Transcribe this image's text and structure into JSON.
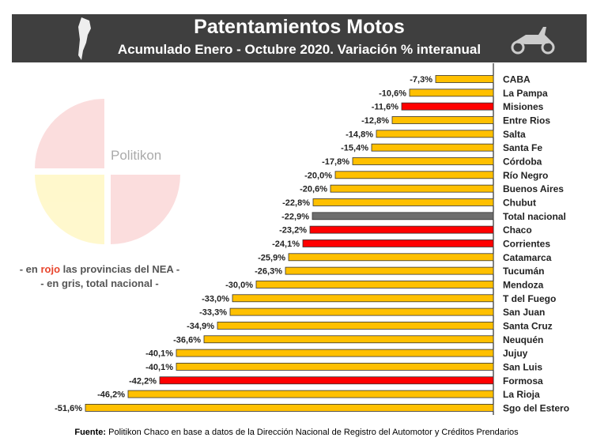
{
  "header": {
    "title": "Patentamientos Motos",
    "subtitle": "Acumulado Enero - Octubre 2020. Variación % interanual"
  },
  "watermark": "Politikon",
  "notes": {
    "line1_pre": "- en ",
    "line1_red": "rojo",
    "line1_post": " las provincias del NEA -",
    "line2_pre": "- en ",
    "line2_bold": "gris",
    "line2_post": ", total nacional -"
  },
  "source": {
    "label": "Fuente:",
    "text": " Politikon Chaco en base a datos de la Dirección Nacional de Registro del Automotor y Créditos Prendarios"
  },
  "colors": {
    "default": "#FFC000",
    "nea": "#FF0000",
    "national": "#6d6d6d"
  },
  "chart_data": {
    "type": "bar",
    "orientation": "horizontal",
    "categories": [
      "CABA",
      "La Pampa",
      "Misiones",
      "Entre Rios",
      "Salta",
      "Santa Fe",
      "Córdoba",
      "Río Negro",
      "Buenos Aires",
      "Chubut",
      "Total nacional",
      "Chaco",
      "Corrientes",
      "Catamarca",
      "Tucumán",
      "Mendoza",
      "T del Fuego",
      "San Juan",
      "Santa Cruz",
      "Neuquén",
      "Jujuy",
      "San Luis",
      "Formosa",
      "La Rioja",
      "Sgo del Estero"
    ],
    "values": [
      -7.3,
      -10.6,
      -11.6,
      -12.8,
      -14.8,
      -15.4,
      -17.8,
      -20.0,
      -20.6,
      -22.8,
      -22.9,
      -23.2,
      -24.1,
      -25.9,
      -26.3,
      -30.0,
      -33.0,
      -33.3,
      -34.9,
      -36.6,
      -40.1,
      -40.1,
      -42.2,
      -46.2,
      -51.6
    ],
    "labels": [
      "-7,3%",
      "-10,6%",
      "-11,6%",
      "-12,8%",
      "-14,8%",
      "-15,4%",
      "-17,8%",
      "-20,0%",
      "-20,6%",
      "-22,8%",
      "-22,9%",
      "-23,2%",
      "-24,1%",
      "-25,9%",
      "-26,3%",
      "-30,0%",
      "-33,0%",
      "-33,3%",
      "-34,9%",
      "-36,6%",
      "-40,1%",
      "-40,1%",
      "-42,2%",
      "-46,2%",
      "-51,6%"
    ],
    "groups": [
      "default",
      "default",
      "nea",
      "default",
      "default",
      "default",
      "default",
      "default",
      "default",
      "default",
      "national",
      "nea",
      "nea",
      "default",
      "default",
      "default",
      "default",
      "default",
      "default",
      "default",
      "default",
      "default",
      "nea",
      "default",
      "default"
    ],
    "unit": "%",
    "grid": false
  }
}
